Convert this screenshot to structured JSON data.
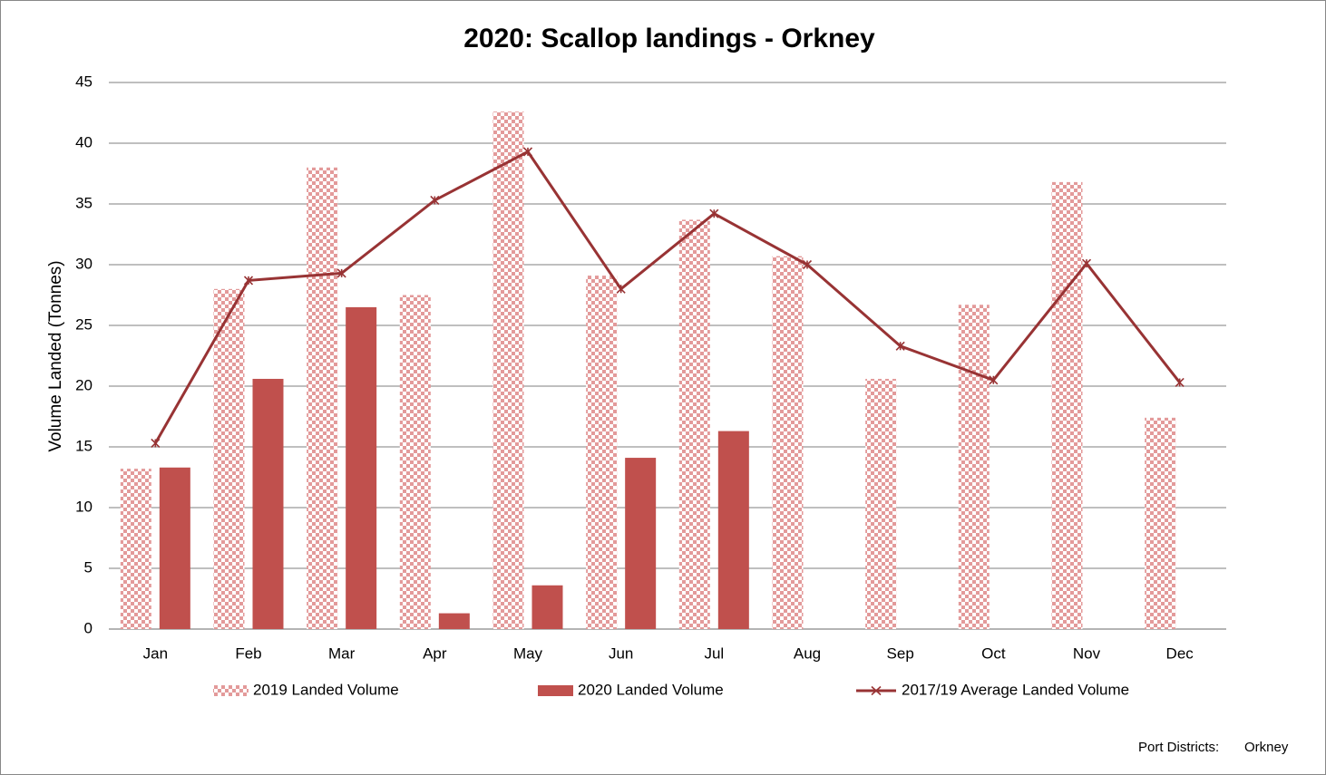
{
  "chart_data": {
    "type": "bar",
    "title": "2020: Scallop landings - Orkney",
    "y_label": "Volume Landed (Tonnes)",
    "categories": [
      "Jan",
      "Feb",
      "Mar",
      "Apr",
      "May",
      "Jun",
      "Jul",
      "Aug",
      "Sep",
      "Oct",
      "Nov",
      "Dec"
    ],
    "series": [
      {
        "name": "2019  Landed Volume",
        "type": "bar",
        "fill": "checkered",
        "color": "#e39a9a",
        "values": [
          13.2,
          28,
          38,
          27.5,
          42.6,
          29.1,
          33.7,
          30.7,
          20.6,
          26.7,
          36.8,
          17.4
        ]
      },
      {
        "name": "2020 Landed Volume",
        "type": "bar",
        "fill": "solid",
        "color": "#c0504d",
        "values": [
          13.3,
          20.6,
          26.5,
          1.3,
          3.6,
          14.1,
          16.3,
          null,
          null,
          null,
          null,
          null
        ]
      },
      {
        "name": "2017/19 Average Landed Volume",
        "type": "line",
        "color": "#983334",
        "values": [
          15.3,
          28.7,
          29.3,
          35.3,
          39.3,
          28.0,
          34.2,
          30.0,
          23.3,
          20.5,
          30.1,
          20.3
        ]
      }
    ],
    "ylim": [
      0,
      45
    ],
    "yticks": [
      0,
      5,
      10,
      15,
      20,
      25,
      30,
      35,
      40,
      45
    ],
    "grid": true,
    "legend": "bottom",
    "footer": {
      "label": "Port Districts:",
      "value": "Orkney"
    }
  }
}
